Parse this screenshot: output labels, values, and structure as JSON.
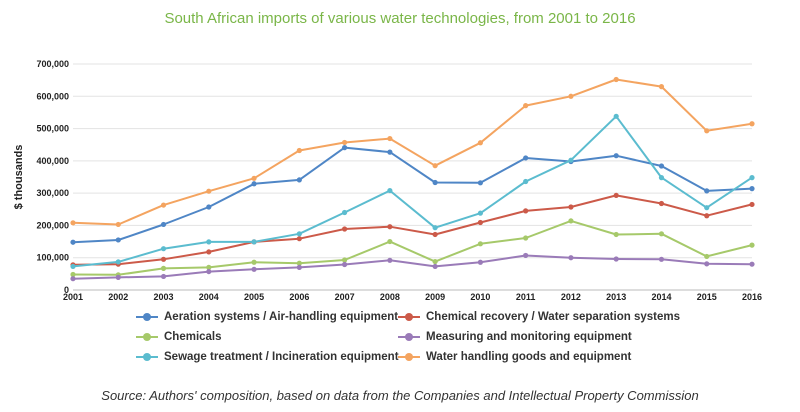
{
  "chart_data": {
    "type": "line",
    "title": "South African imports of various water technologies, from 2001 to 2016",
    "xlabel": "",
    "ylabel": "$ thousands",
    "ylim": [
      0,
      700000
    ],
    "yticks": [
      "0",
      "100,000",
      "200,000",
      "300,000",
      "400,000",
      "500,000",
      "600,000",
      "700,000"
    ],
    "ytick_values": [
      0,
      100000,
      200000,
      300000,
      400000,
      500000,
      600000,
      700000
    ],
    "x": [
      "2001",
      "2002",
      "2003",
      "2004",
      "2005",
      "2006",
      "2007",
      "2008",
      "2009",
      "2010",
      "2011",
      "2012",
      "2013",
      "2014",
      "2015",
      "2016"
    ],
    "grid": "horizontal",
    "legend_position": "bottom",
    "series": [
      {
        "name": "Aeration systems / Air-handling equipment",
        "color": "#4f86c6",
        "values": [
          148000,
          155000,
          203000,
          257000,
          329000,
          341000,
          441000,
          427000,
          333000,
          332000,
          409000,
          398000,
          416000,
          384000,
          307000,
          314000
        ]
      },
      {
        "name": "Chemical recovery / Water separation systems",
        "color": "#cc5a49",
        "values": [
          78000,
          80000,
          95000,
          118000,
          149000,
          159000,
          189000,
          196000,
          172000,
          209000,
          245000,
          257000,
          293000,
          268000,
          230000,
          265000
        ]
      },
      {
        "name": "Chemicals",
        "color": "#a6c96a",
        "values": [
          48000,
          47000,
          67000,
          70000,
          86000,
          83000,
          93000,
          150000,
          88000,
          143000,
          161000,
          214000,
          172000,
          174000,
          104000,
          139000
        ]
      },
      {
        "name": "Measuring and monitoring equipment",
        "color": "#9a7bb8",
        "values": [
          35000,
          39000,
          42000,
          57000,
          64000,
          70000,
          79000,
          92000,
          73000,
          86000,
          107000,
          100000,
          96000,
          95000,
          81000,
          80000
        ]
      },
      {
        "name": "Sewage treatment / Incineration equipment",
        "color": "#5bbccf",
        "values": [
          73000,
          87000,
          128000,
          149000,
          149000,
          174000,
          240000,
          308000,
          193000,
          238000,
          336000,
          402000,
          538000,
          348000,
          255000,
          348000
        ]
      },
      {
        "name": "Water handling goods and equipment",
        "color": "#f4a460",
        "values": [
          208000,
          203000,
          263000,
          306000,
          346000,
          432000,
          457000,
          469000,
          385000,
          456000,
          571000,
          600000,
          652000,
          630000,
          493000,
          515000
        ]
      }
    ]
  },
  "legend_order": [
    0,
    1,
    2,
    3,
    4,
    5
  ],
  "source_text": "Source: Authors' composition, based on data from the Companies and Intellectual Property Commission"
}
